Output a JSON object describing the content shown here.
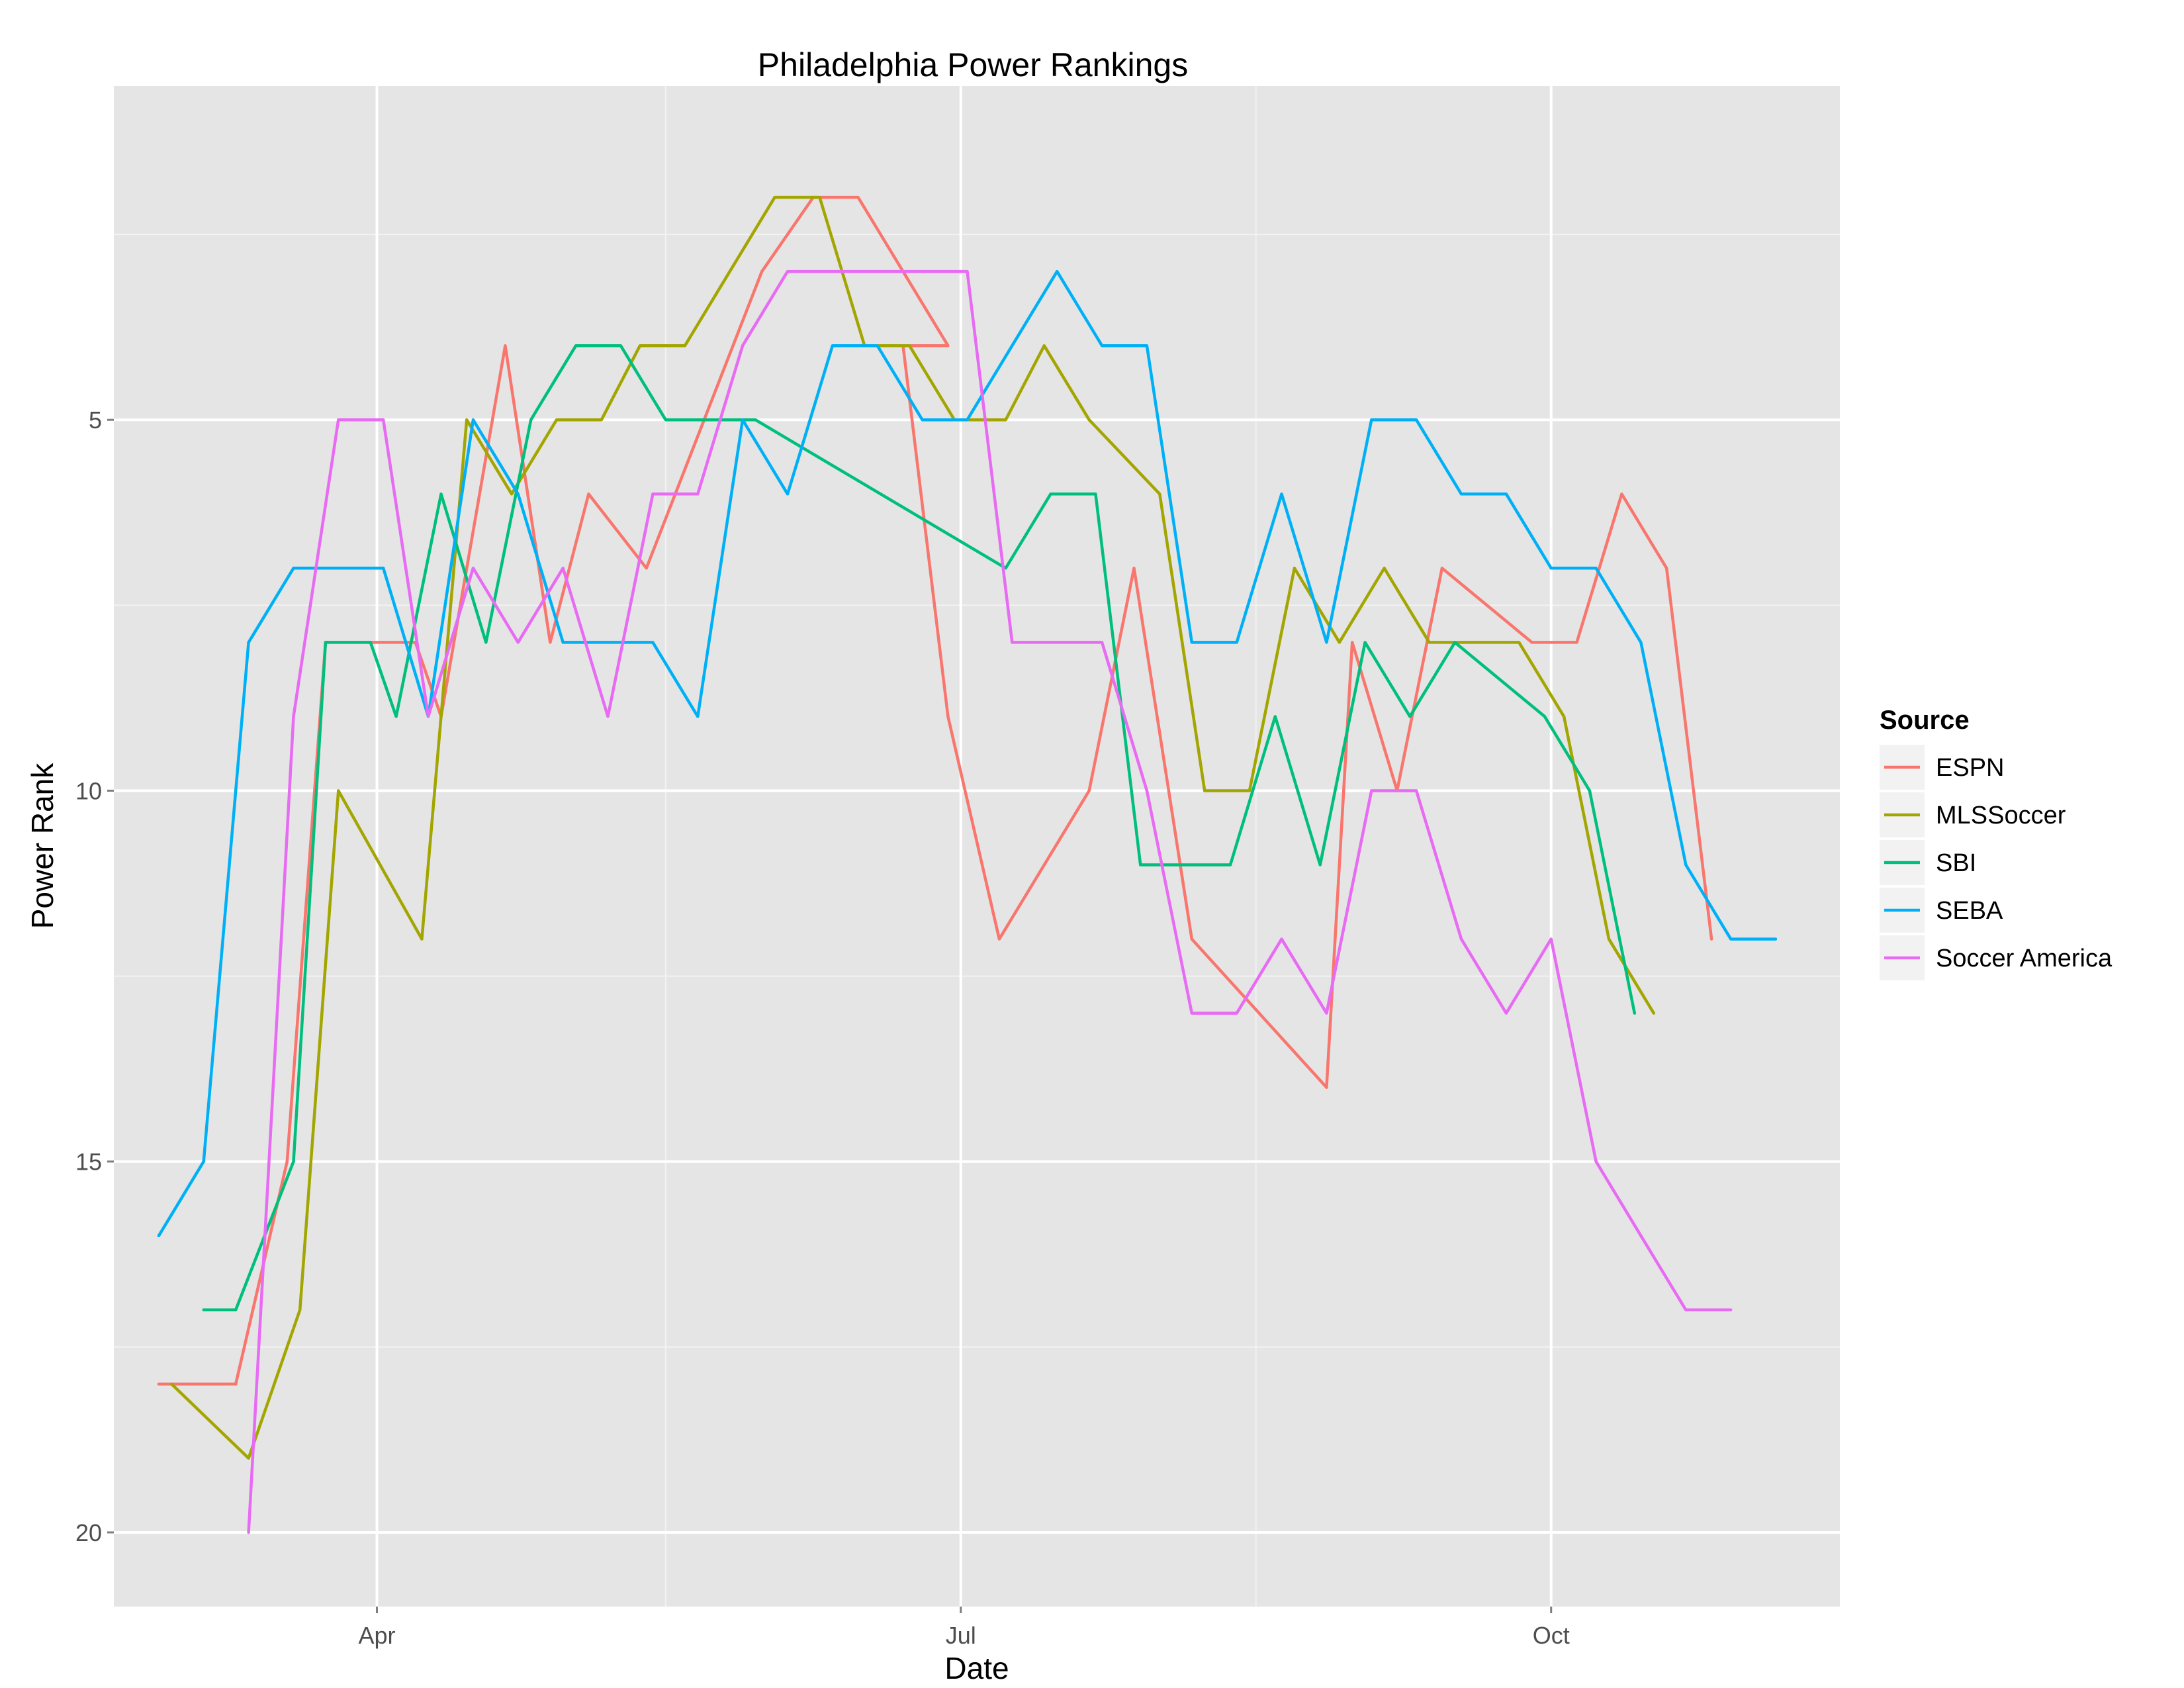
{
  "chart_data": {
    "type": "line",
    "title": "Philadelphia Power Rankings",
    "xlabel": "Date",
    "ylabel": "Power Rank",
    "xlim": [
      "2014-02-19",
      "2014-11-15"
    ],
    "ylim": [
      21,
      0.5
    ],
    "y_reversed": true,
    "x_ticks": [
      {
        "date": "2014-04-01",
        "label": "Apr"
      },
      {
        "date": "2014-07-01",
        "label": "Jul"
      },
      {
        "date": "2014-10-01",
        "label": "Oct"
      }
    ],
    "y_ticks": [
      5,
      10,
      15,
      20
    ],
    "grid": true,
    "legend_position": "right",
    "legend_title": "Source",
    "series": [
      {
        "name": "ESPN",
        "color": "#F8766D",
        "points": [
          [
            "2014-02-26",
            18
          ],
          [
            "2014-03-10",
            18
          ],
          [
            "2014-03-18",
            15
          ],
          [
            "2014-03-24",
            8
          ],
          [
            "2014-04-07",
            8
          ],
          [
            "2014-04-11",
            9
          ],
          [
            "2014-04-21",
            4
          ],
          [
            "2014-04-28",
            8
          ],
          [
            "2014-05-04",
            6
          ],
          [
            "2014-05-13",
            7
          ],
          [
            "2014-05-31",
            3
          ],
          [
            "2014-06-08",
            2
          ],
          [
            "2014-06-15",
            2
          ],
          [
            "2014-06-22",
            3
          ],
          [
            "2014-06-29",
            4
          ],
          [
            "2014-06-22",
            4
          ],
          [
            "2014-06-29",
            9
          ],
          [
            "2014-07-07",
            12
          ],
          [
            "2014-07-21",
            10
          ],
          [
            "2014-07-28",
            7
          ],
          [
            "2014-08-06",
            12
          ],
          [
            "2014-08-27",
            14
          ],
          [
            "2014-08-31",
            8
          ],
          [
            "2014-09-07",
            10
          ],
          [
            "2014-09-14",
            7
          ],
          [
            "2014-09-28",
            8
          ],
          [
            "2014-10-05",
            8
          ],
          [
            "2014-10-12",
            6
          ],
          [
            "2014-10-19",
            7
          ],
          [
            "2014-10-26",
            12
          ]
        ]
      },
      {
        "name": "MLSSoccer",
        "color": "#A3A500",
        "points": [
          [
            "2014-02-28",
            18
          ],
          [
            "2014-03-12",
            19
          ],
          [
            "2014-03-20",
            17
          ],
          [
            "2014-03-26",
            10
          ],
          [
            "2014-04-08",
            12
          ],
          [
            "2014-04-15",
            5
          ],
          [
            "2014-04-22",
            6
          ],
          [
            "2014-04-29",
            5
          ],
          [
            "2014-05-06",
            5
          ],
          [
            "2014-05-12",
            4
          ],
          [
            "2014-05-19",
            4
          ],
          [
            "2014-05-26",
            3
          ],
          [
            "2014-06-02",
            2
          ],
          [
            "2014-06-09",
            2
          ],
          [
            "2014-06-16",
            4
          ],
          [
            "2014-06-23",
            4
          ],
          [
            "2014-06-30",
            5
          ],
          [
            "2014-07-08",
            5
          ],
          [
            "2014-07-14",
            4
          ],
          [
            "2014-07-21",
            5
          ],
          [
            "2014-08-01",
            6
          ],
          [
            "2014-08-08",
            10
          ],
          [
            "2014-08-15",
            10
          ],
          [
            "2014-08-22",
            7
          ],
          [
            "2014-08-29",
            8
          ],
          [
            "2014-09-05",
            7
          ],
          [
            "2014-09-12",
            8
          ],
          [
            "2014-09-19",
            8
          ],
          [
            "2014-09-26",
            8
          ],
          [
            "2014-10-03",
            9
          ],
          [
            "2014-10-10",
            12
          ],
          [
            "2014-10-17",
            13
          ]
        ]
      },
      {
        "name": "SBI",
        "color": "#00BF7D",
        "points": [
          [
            "2014-03-05",
            17
          ],
          [
            "2014-03-10",
            17
          ],
          [
            "2014-03-19",
            15
          ],
          [
            "2014-03-24",
            8
          ],
          [
            "2014-03-31",
            8
          ],
          [
            "2014-04-04",
            9
          ],
          [
            "2014-04-11",
            6
          ],
          [
            "2014-04-18",
            8
          ],
          [
            "2014-04-25",
            5
          ],
          [
            "2014-05-02",
            4
          ],
          [
            "2014-05-09",
            4
          ],
          [
            "2014-05-16",
            5
          ],
          [
            "2014-05-23",
            5
          ],
          [
            "2014-05-30",
            5
          ],
          [
            "2014-07-08",
            7
          ],
          [
            "2014-07-15",
            6
          ],
          [
            "2014-07-22",
            6
          ],
          [
            "2014-07-29",
            11
          ],
          [
            "2014-08-05",
            11
          ],
          [
            "2014-08-12",
            11
          ],
          [
            "2014-08-19",
            9
          ],
          [
            "2014-08-26",
            11
          ],
          [
            "2014-09-02",
            8
          ],
          [
            "2014-09-09",
            9
          ],
          [
            "2014-09-16",
            8
          ],
          [
            "2014-09-30",
            9
          ],
          [
            "2014-10-07",
            10
          ],
          [
            "2014-10-14",
            13
          ]
        ]
      },
      {
        "name": "SEBA",
        "color": "#00B0F6",
        "points": [
          [
            "2014-02-26",
            16
          ],
          [
            "2014-03-05",
            15
          ],
          [
            "2014-03-12",
            8
          ],
          [
            "2014-03-19",
            7
          ],
          [
            "2014-03-26",
            7
          ],
          [
            "2014-04-02",
            7
          ],
          [
            "2014-04-09",
            9
          ],
          [
            "2014-04-16",
            5
          ],
          [
            "2014-04-23",
            6
          ],
          [
            "2014-04-30",
            8
          ],
          [
            "2014-05-07",
            8
          ],
          [
            "2014-05-14",
            8
          ],
          [
            "2014-05-21",
            9
          ],
          [
            "2014-05-28",
            5
          ],
          [
            "2014-06-04",
            6
          ],
          [
            "2014-06-11",
            4
          ],
          [
            "2014-06-18",
            4
          ],
          [
            "2014-06-25",
            5
          ],
          [
            "2014-07-02",
            5
          ],
          [
            "2014-07-09",
            4
          ],
          [
            "2014-07-16",
            3
          ],
          [
            "2014-07-23",
            4
          ],
          [
            "2014-07-30",
            4
          ],
          [
            "2014-08-06",
            8
          ],
          [
            "2014-08-13",
            8
          ],
          [
            "2014-08-20",
            6
          ],
          [
            "2014-08-27",
            8
          ],
          [
            "2014-09-03",
            5
          ],
          [
            "2014-09-10",
            5
          ],
          [
            "2014-09-17",
            6
          ],
          [
            "2014-09-24",
            6
          ],
          [
            "2014-10-01",
            7
          ],
          [
            "2014-10-08",
            7
          ],
          [
            "2014-10-15",
            8
          ],
          [
            "2014-10-22",
            11
          ],
          [
            "2014-10-29",
            12
          ],
          [
            "2014-11-05",
            12
          ]
        ]
      },
      {
        "name": "Soccer America",
        "color": "#E76BF3",
        "points": [
          [
            "2014-03-12",
            20
          ],
          [
            "2014-03-19",
            9
          ],
          [
            "2014-03-26",
            5
          ],
          [
            "2014-04-02",
            5
          ],
          [
            "2014-04-09",
            9
          ],
          [
            "2014-04-16",
            7
          ],
          [
            "2014-04-23",
            8
          ],
          [
            "2014-04-30",
            7
          ],
          [
            "2014-05-07",
            9
          ],
          [
            "2014-05-14",
            6
          ],
          [
            "2014-05-21",
            6
          ],
          [
            "2014-05-28",
            4
          ],
          [
            "2014-06-04",
            3
          ],
          [
            "2014-06-11",
            3
          ],
          [
            "2014-06-18",
            3
          ],
          [
            "2014-06-25",
            3
          ],
          [
            "2014-07-02",
            3
          ],
          [
            "2014-07-09",
            8
          ],
          [
            "2014-07-16",
            8
          ],
          [
            "2014-07-23",
            8
          ],
          [
            "2014-07-30",
            10
          ],
          [
            "2014-08-06",
            13
          ],
          [
            "2014-08-13",
            13
          ],
          [
            "2014-08-20",
            12
          ],
          [
            "2014-08-27",
            13
          ],
          [
            "2014-09-03",
            10
          ],
          [
            "2014-09-10",
            10
          ],
          [
            "2014-09-17",
            12
          ],
          [
            "2014-09-24",
            13
          ],
          [
            "2014-10-01",
            12
          ],
          [
            "2014-10-08",
            15
          ],
          [
            "2014-10-15",
            16
          ],
          [
            "2014-10-22",
            17
          ],
          [
            "2014-10-29",
            17
          ]
        ]
      }
    ]
  }
}
